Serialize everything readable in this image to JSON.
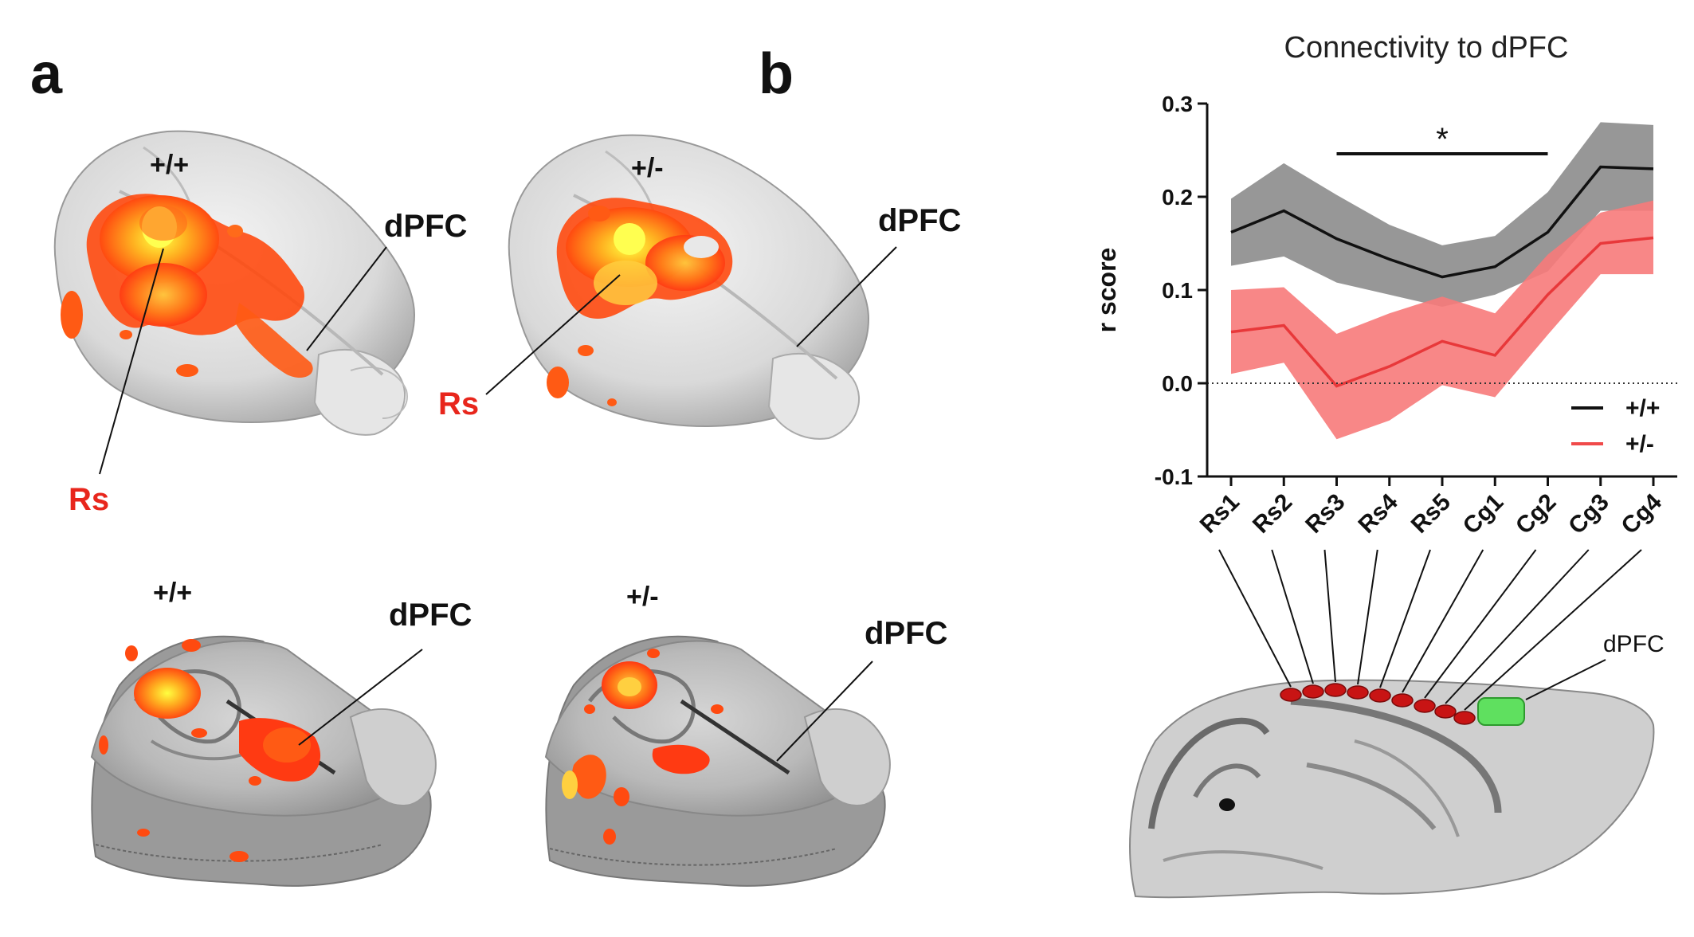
{
  "panels": {
    "a": {
      "letter": "a",
      "brains": [
        {
          "genotype": "+/+",
          "region": "dPFC",
          "rs": "Rs"
        },
        {
          "genotype": "+/-",
          "region": "dPFC",
          "rs": "Rs"
        },
        {
          "genotype": "+/+",
          "region": "dPFC"
        },
        {
          "genotype": "+/-",
          "region": "dPFC"
        }
      ]
    },
    "b": {
      "letter": "b",
      "sagittal_label": "dPFC"
    }
  },
  "colors": {
    "wt": "#111111",
    "het": "#f04a4a",
    "wt_band": "#8c8c8c",
    "het_band": "#f77a7a",
    "rs_label": "#e8261c",
    "seed": "#c81414",
    "dpfc_roi": "#5fe05f"
  },
  "chart_data": {
    "type": "line",
    "title": "Connectivity to dPFC",
    "xlabel": "",
    "ylabel": "r score",
    "categories": [
      "Rs1",
      "Rs2",
      "Rs3",
      "Rs4",
      "Rs5",
      "Cg1",
      "Cg2",
      "Cg3",
      "Cg4"
    ],
    "ylim": [
      -0.1,
      0.3
    ],
    "yticks": [
      "0.3",
      "0.2",
      "0.1",
      "0.0",
      "-0.1"
    ],
    "significance": "*",
    "significance_span": [
      "Rs3",
      "Cg2"
    ],
    "legend": "bottom-right",
    "series": [
      {
        "name": "+/+",
        "values": [
          0.162,
          0.185,
          0.155,
          0.133,
          0.114,
          0.125,
          0.162,
          0.232,
          0.23
        ],
        "upper": [
          0.198,
          0.236,
          0.202,
          0.17,
          0.148,
          0.158,
          0.205,
          0.28,
          0.277
        ],
        "lower": [
          0.126,
          0.136,
          0.108,
          0.095,
          0.082,
          0.095,
          0.12,
          0.185,
          0.185
        ]
      },
      {
        "name": "+/-",
        "values": [
          0.055,
          0.062,
          -0.003,
          0.018,
          0.045,
          0.03,
          0.095,
          0.15,
          0.156
        ],
        "upper": [
          0.1,
          0.103,
          0.053,
          0.075,
          0.093,
          0.075,
          0.138,
          0.183,
          0.196
        ],
        "lower": [
          0.01,
          0.022,
          -0.06,
          -0.04,
          -0.002,
          -0.015,
          0.052,
          0.117,
          0.117
        ]
      }
    ]
  }
}
